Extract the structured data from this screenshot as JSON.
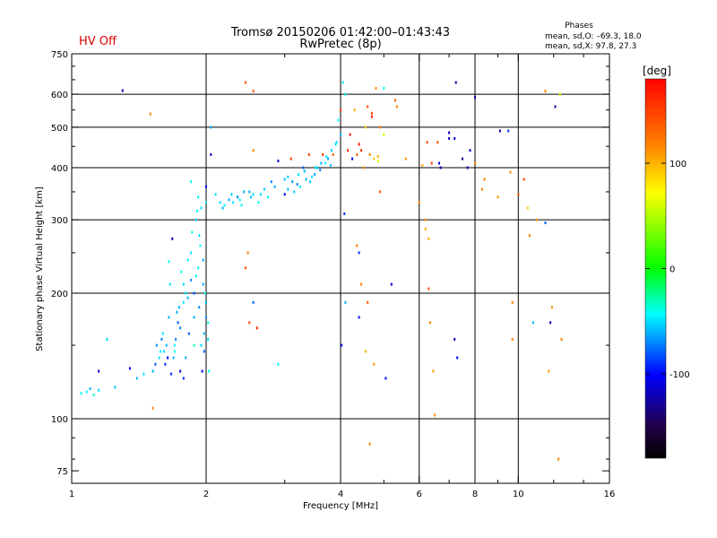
{
  "hv_status": "HV Off",
  "chart_data": {
    "type": "scatter",
    "title_line1": "Tromsø 20150206 01:42:00–01:43:43",
    "title_line2": "RwPretec (8p)",
    "phases": {
      "heading": "Phases",
      "line1": "mean, sd,O: –69.3, 18.0",
      "line2": "mean, sd,X:  97.8, 27.3"
    },
    "xlabel": "Frequency [MHz]",
    "ylabel": "Stationary phase Virtual Height [km]",
    "x_scale": "log",
    "y_scale": "log",
    "xlim": [
      1,
      16
    ],
    "ylim": [
      70,
      750
    ],
    "x_major_ticks": [
      1,
      2,
      4,
      6,
      8,
      10,
      16
    ],
    "x_minor_ticks": [
      3,
      5,
      7,
      9,
      12,
      14
    ],
    "y_major_ticks": [
      75,
      100,
      200,
      300,
      400,
      500,
      600,
      750
    ],
    "y_minor_ticks": [
      80,
      90,
      150,
      250,
      350,
      450,
      550,
      650,
      700
    ],
    "grid_x": [
      2,
      4,
      6,
      8,
      10
    ],
    "grid_y": [
      100,
      200,
      300,
      400,
      500,
      600
    ],
    "colorbar": {
      "label": "[deg]",
      "range": [
        -180,
        180
      ],
      "ticks": [
        100,
        0,
        -100
      ],
      "colors": [
        "#ff0000",
        "#ff8800",
        "#ffff00",
        "#00ff00",
        "#00ffff",
        "#0000ff",
        "#220044",
        "#000000"
      ]
    },
    "series": [
      {
        "points": [
          [
            1.05,
            115,
            -40
          ],
          [
            1.08,
            116,
            -45
          ],
          [
            1.1,
            118,
            -60
          ],
          [
            1.12,
            114,
            -35
          ],
          [
            1.15,
            117,
            -50
          ],
          [
            1.2,
            155,
            -50
          ],
          [
            1.25,
            119,
            -55
          ],
          [
            1.3,
            612,
            -120
          ],
          [
            1.4,
            125,
            -60
          ],
          [
            1.45,
            128,
            -50
          ],
          [
            1.5,
            538,
            120
          ],
          [
            1.52,
            106,
            120
          ],
          [
            1.55,
            150,
            -70
          ],
          [
            1.58,
            145,
            -40
          ],
          [
            1.6,
            160,
            -50
          ],
          [
            1.62,
            135,
            -90
          ],
          [
            1.65,
            175,
            -60
          ],
          [
            1.65,
            238,
            -40
          ],
          [
            1.66,
            210,
            -50
          ],
          [
            1.68,
            270,
            -120
          ],
          [
            1.7,
            150,
            -45
          ],
          [
            1.72,
            180,
            -60
          ],
          [
            1.75,
            165,
            -70
          ],
          [
            1.75,
            130,
            -110
          ],
          [
            1.78,
            125,
            -90
          ],
          [
            1.8,
            200,
            -50
          ],
          [
            1.8,
            140,
            -60
          ],
          [
            1.82,
            240,
            -40
          ],
          [
            1.83,
            160,
            -80
          ],
          [
            1.85,
            370,
            -40
          ],
          [
            1.85,
            250,
            -50
          ],
          [
            1.86,
            280,
            -40
          ],
          [
            1.88,
            150,
            -30
          ],
          [
            1.88,
            175,
            -60
          ],
          [
            1.9,
            220,
            -40
          ],
          [
            1.9,
            300,
            -50
          ],
          [
            1.92,
            340,
            -45
          ],
          [
            1.93,
            185,
            -70
          ],
          [
            1.94,
            260,
            -40
          ],
          [
            1.95,
            320,
            -50
          ],
          [
            1.96,
            130,
            -100
          ],
          [
            1.97,
            210,
            -60
          ],
          [
            1.98,
            145,
            -80
          ],
          [
            2.0,
            360,
            -100
          ],
          [
            2.0,
            330,
            -50
          ],
          [
            2.0,
            190,
            -60
          ],
          [
            2.02,
            170,
            -40
          ],
          [
            2.03,
            130,
            -40
          ],
          [
            2.05,
            430,
            -110
          ],
          [
            2.05,
            500,
            -60
          ],
          [
            1.15,
            130,
            -110
          ],
          [
            1.35,
            132,
            -100
          ],
          [
            1.7,
            145,
            -40
          ],
          [
            1.78,
            190,
            -50
          ],
          [
            1.92,
            230,
            -45
          ],
          [
            2.1,
            345,
            -50
          ],
          [
            2.2,
            325,
            -40
          ],
          [
            2.25,
            335,
            -60
          ],
          [
            2.3,
            330,
            -50
          ],
          [
            2.35,
            340,
            -70
          ],
          [
            2.4,
            325,
            -45
          ],
          [
            2.45,
            640,
            140
          ],
          [
            2.45,
            230,
            140
          ],
          [
            2.48,
            250,
            120
          ],
          [
            2.5,
            350,
            -60
          ],
          [
            2.5,
            170,
            150
          ],
          [
            2.55,
            610,
            140
          ],
          [
            2.55,
            440,
            120
          ],
          [
            2.55,
            190,
            -80
          ],
          [
            2.55,
            345,
            -50
          ],
          [
            2.6,
            165,
            170
          ],
          [
            2.62,
            330,
            -40
          ],
          [
            2.7,
            355,
            -55
          ],
          [
            2.75,
            340,
            -45
          ],
          [
            2.8,
            370,
            -70
          ],
          [
            2.85,
            360,
            -60
          ],
          [
            2.9,
            135,
            -40
          ],
          [
            2.9,
            415,
            -110
          ],
          [
            3.0,
            375,
            -55
          ],
          [
            3.0,
            345,
            -100
          ],
          [
            3.05,
            355,
            -60
          ],
          [
            3.1,
            420,
            150
          ],
          [
            3.15,
            350,
            -50
          ],
          [
            3.2,
            365,
            -70
          ],
          [
            3.25,
            360,
            -40
          ],
          [
            3.3,
            400,
            -80
          ],
          [
            3.35,
            375,
            -60
          ],
          [
            3.4,
            430,
            150
          ],
          [
            3.45,
            380,
            -50
          ],
          [
            3.5,
            385,
            -65
          ],
          [
            3.55,
            400,
            -55
          ],
          [
            3.6,
            395,
            -70
          ],
          [
            3.65,
            430,
            150
          ],
          [
            3.7,
            410,
            -45
          ],
          [
            3.75,
            420,
            -60
          ],
          [
            3.8,
            405,
            -55
          ],
          [
            3.85,
            430,
            140
          ],
          [
            3.9,
            455,
            -50
          ],
          [
            3.95,
            520,
            -45
          ],
          [
            4.0,
            480,
            -60
          ],
          [
            4.0,
            550,
            150
          ],
          [
            4.02,
            150,
            -100
          ],
          [
            4.05,
            640,
            -50
          ],
          [
            4.08,
            310,
            -90
          ],
          [
            4.1,
            600,
            -40
          ],
          [
            4.1,
            190,
            -60
          ],
          [
            4.15,
            440,
            160
          ],
          [
            4.2,
            480,
            170
          ],
          [
            4.25,
            420,
            -100
          ],
          [
            4.3,
            550,
            100
          ],
          [
            4.35,
            260,
            120
          ],
          [
            4.35,
            430,
            140
          ],
          [
            4.4,
            175,
            -100
          ],
          [
            4.4,
            250,
            -90
          ],
          [
            4.4,
            455,
            170
          ],
          [
            4.45,
            440,
            160
          ],
          [
            4.45,
            210,
            120
          ],
          [
            4.5,
            400,
            110
          ],
          [
            4.55,
            500,
            90
          ],
          [
            4.55,
            145,
            100
          ],
          [
            4.6,
            560,
            140
          ],
          [
            4.6,
            190,
            140
          ],
          [
            4.65,
            430,
            120
          ],
          [
            4.65,
            87,
            120
          ],
          [
            4.7,
            530,
            170
          ],
          [
            4.7,
            540,
            150
          ],
          [
            4.75,
            420,
            90
          ],
          [
            4.75,
            135,
            110
          ],
          [
            4.8,
            620,
            110
          ],
          [
            4.85,
            415,
            60
          ],
          [
            4.85,
            425,
            100
          ],
          [
            4.9,
            350,
            140
          ],
          [
            4.9,
            500,
            120
          ],
          [
            5.0,
            480,
            60
          ],
          [
            5.0,
            620,
            -40
          ],
          [
            5.05,
            125,
            -100
          ],
          [
            5.2,
            210,
            -120
          ],
          [
            5.3,
            580,
            130
          ],
          [
            5.35,
            560,
            120
          ],
          [
            5.6,
            420,
            110
          ],
          [
            6.0,
            330,
            120
          ],
          [
            6.1,
            405,
            100
          ],
          [
            6.2,
            300,
            110
          ],
          [
            6.2,
            285,
            100
          ],
          [
            6.25,
            460,
            140
          ],
          [
            6.3,
            270,
            100
          ],
          [
            6.3,
            205,
            140
          ],
          [
            6.35,
            170,
            120
          ],
          [
            6.4,
            410,
            150
          ],
          [
            6.45,
            130,
            110
          ],
          [
            6.5,
            102,
            110
          ],
          [
            6.6,
            460,
            140
          ],
          [
            6.65,
            410,
            -110
          ],
          [
            6.7,
            400,
            -120
          ],
          [
            7.0,
            470,
            -120
          ],
          [
            7.0,
            485,
            -120
          ],
          [
            7.2,
            470,
            -120
          ],
          [
            7.2,
            155,
            -120
          ],
          [
            7.25,
            640,
            -120
          ],
          [
            7.3,
            140,
            -100
          ],
          [
            7.5,
            420,
            -130
          ],
          [
            7.7,
            400,
            -120
          ],
          [
            7.8,
            440,
            -110
          ],
          [
            8.0,
            410,
            120
          ],
          [
            8.0,
            590,
            -120
          ],
          [
            8.3,
            355,
            120
          ],
          [
            8.4,
            375,
            120
          ],
          [
            9.0,
            340,
            110
          ],
          [
            9.1,
            490,
            -120
          ],
          [
            9.5,
            490,
            -90
          ],
          [
            9.6,
            390,
            110
          ],
          [
            9.7,
            155,
            120
          ],
          [
            9.7,
            190,
            120
          ],
          [
            10.0,
            345,
            140
          ],
          [
            10.3,
            375,
            150
          ],
          [
            10.5,
            320,
            90
          ],
          [
            10.6,
            275,
            120
          ],
          [
            10.8,
            170,
            -60
          ],
          [
            11.0,
            300,
            110
          ],
          [
            11.5,
            295,
            -80
          ],
          [
            11.5,
            610,
            120
          ],
          [
            11.7,
            130,
            110
          ],
          [
            11.8,
            170,
            -120
          ],
          [
            11.9,
            185,
            110
          ],
          [
            12.1,
            560,
            -130
          ],
          [
            12.3,
            80,
            120
          ],
          [
            12.4,
            600,
            60
          ],
          [
            12.5,
            155,
            120
          ],
          [
            3.05,
            380,
            -55
          ],
          [
            3.12,
            370,
            -65
          ],
          [
            3.22,
            385,
            -50
          ],
          [
            3.32,
            392,
            -60
          ],
          [
            3.42,
            370,
            -55
          ],
          [
            3.52,
            400,
            -50
          ],
          [
            3.62,
            410,
            -60
          ],
          [
            3.72,
            425,
            -50
          ],
          [
            3.82,
            440,
            -55
          ],
          [
            3.92,
            460,
            -50
          ],
          [
            2.15,
            330,
            -50
          ],
          [
            2.18,
            320,
            -60
          ],
          [
            2.28,
            345,
            -55
          ],
          [
            2.38,
            335,
            -45
          ],
          [
            2.43,
            350,
            -60
          ],
          [
            2.52,
            340,
            -55
          ],
          [
            2.65,
            345,
            -50
          ],
          [
            1.88,
            200,
            -80
          ],
          [
            1.85,
            215,
            -70
          ],
          [
            1.82,
            195,
            -60
          ],
          [
            1.78,
            210,
            -50
          ],
          [
            1.76,
            225,
            -40
          ],
          [
            1.74,
            185,
            -60
          ],
          [
            1.73,
            170,
            -80
          ],
          [
            1.71,
            155,
            -70
          ],
          [
            1.69,
            140,
            -60
          ],
          [
            1.67,
            128,
            -90
          ],
          [
            1.64,
            140,
            -100
          ],
          [
            1.63,
            150,
            -60
          ],
          [
            1.61,
            145,
            -50
          ],
          [
            1.59,
            155,
            -70
          ],
          [
            1.57,
            140,
            -50
          ],
          [
            1.54,
            135,
            -80
          ],
          [
            1.52,
            130,
            -60
          ],
          [
            1.95,
            150,
            -50
          ],
          [
            1.98,
            160,
            -60
          ],
          [
            2.0,
            175,
            -70
          ],
          [
            2.02,
            155,
            -50
          ],
          [
            1.99,
            200,
            -40
          ],
          [
            1.97,
            240,
            -60
          ],
          [
            1.93,
            275,
            -50
          ],
          [
            1.91,
            315,
            -40
          ]
        ]
      }
    ]
  }
}
